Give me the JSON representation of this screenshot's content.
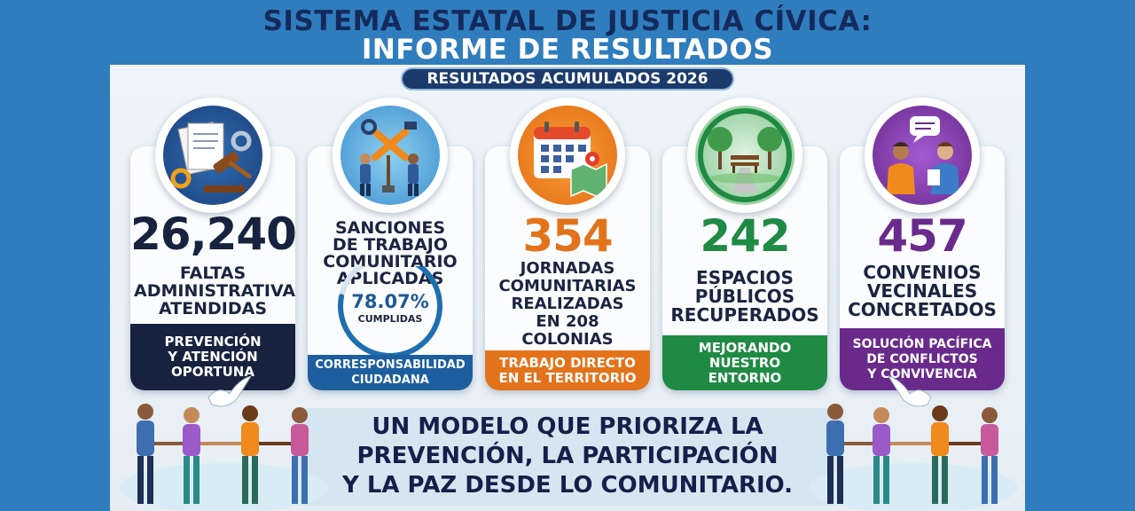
{
  "header": {
    "title_line1": "SISTEMA ESTATAL DE JUSTICIA CÍVICA:",
    "title_line2": "INFORME DE RESULTADOS",
    "badge": "RESULTADOS ACUMULADOS 2026"
  },
  "cards": [
    {
      "value": "26,240",
      "desc": [
        "FALTAS",
        "ADMINISTRATIVAS",
        "ATENDIDAS"
      ],
      "footer": [
        "PREVENCIÓN",
        "Y ATENCIÓN",
        "OPORTUNA"
      ],
      "color": "#17223f",
      "icon": "gavel-documents-icon"
    },
    {
      "desc": [
        "SANCIONES",
        "DE TRABAJO",
        "COMUNITARIO",
        "APLICADAS"
      ],
      "percent": "78.07%",
      "percent_label": "CUMPLIDAS",
      "percent_fraction": 0.7807,
      "footer": [
        "CORRESPONSABILIDAD",
        "CIUDADANA"
      ],
      "color": "#1d5f9e",
      "icon": "community-work-icon"
    },
    {
      "value": "354",
      "desc": [
        "JORNADAS",
        "COMUNITARIAS",
        "REALIZADAS",
        "EN 208",
        "COLONIAS"
      ],
      "footer": [
        "TRABAJO DIRECTO",
        "EN EL TERRITORIO"
      ],
      "color": "#e3731b",
      "icon": "calendar-map-icon"
    },
    {
      "value": "242",
      "desc": [
        "ESPACIOS",
        "PÚBLICOS",
        "RECUPERADOS"
      ],
      "footer": [
        "MEJORANDO",
        "NUESTRO",
        "ENTORNO"
      ],
      "color": "#1f8a44",
      "icon": "park-icon"
    },
    {
      "value": "457",
      "desc": [
        "CONVENIOS",
        "VECINALES",
        "CONCRETADOS"
      ],
      "footer": [
        "SOLUCIÓN PACÍFICA",
        "DE CONFLICTOS",
        "Y CONVIVENCIA"
      ],
      "color": "#6a2a8c",
      "icon": "neighbors-dialogue-icon"
    }
  ],
  "slogan": [
    "UN MODELO QUE PRIORIZA LA",
    "PREVENCIÓN, LA PARTICIPACIÓN",
    "Y LA PAZ DESDE LO COMUNITARIO."
  ],
  "colors": {
    "background": "#2f7dbd",
    "navy": "#17223f",
    "blue": "#1d5f9e",
    "orange": "#e3731b",
    "green": "#1f8a44",
    "purple": "#6a2a8c"
  }
}
